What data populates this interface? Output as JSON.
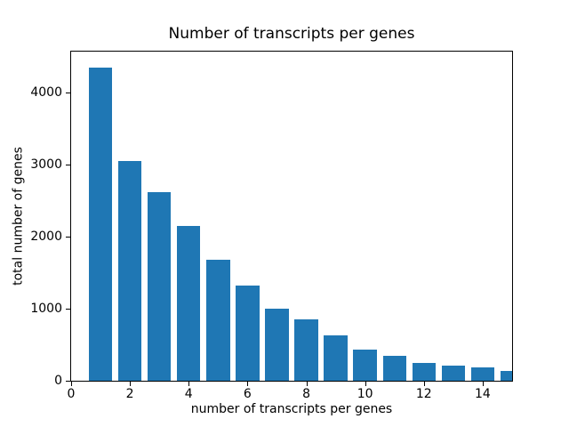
{
  "chart_data": {
    "type": "bar",
    "title": "Number of transcripts per genes",
    "xlabel": "number of transcripts per genes",
    "ylabel": "total number of genes",
    "x": [
      1,
      2,
      3,
      4,
      5,
      6,
      7,
      8,
      9,
      10,
      11,
      12,
      13,
      14,
      15
    ],
    "values": [
      4350,
      3045,
      2620,
      2150,
      1675,
      1325,
      1000,
      850,
      630,
      430,
      350,
      245,
      215,
      190,
      130
    ],
    "bar_color": "#1f77b4",
    "bar_width_units": 0.8,
    "xlim": [
      0,
      15
    ],
    "ylim": [
      0,
      4570
    ],
    "x_ticks": {
      "values": [
        0,
        2,
        4,
        6,
        8,
        10,
        12,
        14
      ],
      "labels": [
        "0",
        "2",
        "4",
        "6",
        "8",
        "10",
        "12",
        "14"
      ]
    },
    "y_ticks": {
      "values": [
        0,
        1000,
        2000,
        3000,
        4000
      ],
      "labels": [
        "0",
        "1000",
        "2000",
        "3000",
        "4000"
      ]
    },
    "grid": false,
    "legend_position": "none",
    "axis_color": "#000000",
    "background_color": "#ffffff"
  }
}
